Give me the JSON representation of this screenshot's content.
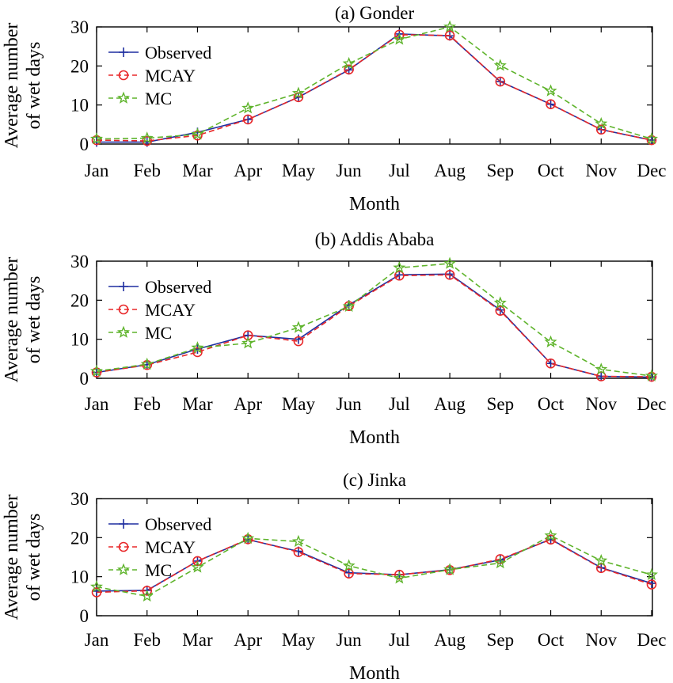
{
  "colors": {
    "observed": "#1f2fa0",
    "mcay": "#e8282a",
    "mc": "#5fb42c"
  },
  "chart_data": [
    {
      "type": "line",
      "title": "(a) Gonder",
      "xlabel": "Month",
      "ylabel": "Average number of wet days",
      "ylabel_lines": [
        "Average number",
        "of wet days"
      ],
      "categories": [
        "Jan",
        "Feb",
        "Mar",
        "Apr",
        "May",
        "Jun",
        "Jul",
        "Aug",
        "Sep",
        "Oct",
        "Nov",
        "Dec"
      ],
      "ylim": [
        0,
        30
      ],
      "yticks": [
        0,
        10,
        20,
        30
      ],
      "legend": "top-left",
      "grid": false,
      "series": [
        {
          "name": "Observed",
          "marker": "plus",
          "values": [
            0.5,
            0.5,
            3.0,
            6.3,
            12.0,
            19.0,
            28.2,
            27.7,
            16.0,
            10.2,
            3.7,
            1.0
          ]
        },
        {
          "name": "MCAY",
          "marker": "circle",
          "values": [
            1.0,
            0.8,
            2.2,
            6.3,
            12.0,
            19.1,
            28.0,
            27.8,
            16.0,
            10.2,
            3.7,
            1.0
          ]
        },
        {
          "name": "MC",
          "marker": "star",
          "values": [
            1.3,
            1.5,
            2.5,
            9.2,
            13.0,
            20.6,
            26.8,
            30.0,
            20.1,
            13.6,
            5.2,
            1.3
          ]
        }
      ]
    },
    {
      "type": "line",
      "title": "(b) Addis Ababa",
      "xlabel": "Month",
      "ylabel": "Average number of wet days",
      "ylabel_lines": [
        "Average number",
        "of wet days"
      ],
      "categories": [
        "Jan",
        "Feb",
        "Mar",
        "Apr",
        "May",
        "Jun",
        "Jul",
        "Aug",
        "Sep",
        "Oct",
        "Nov",
        "Dec"
      ],
      "ylim": [
        0,
        30
      ],
      "yticks": [
        0,
        10,
        20,
        30
      ],
      "legend": "top-left",
      "grid": false,
      "series": [
        {
          "name": "Observed",
          "marker": "plus",
          "values": [
            1.5,
            3.5,
            7.5,
            11.0,
            10.0,
            18.8,
            26.5,
            26.7,
            17.5,
            3.8,
            0.5,
            0.3
          ]
        },
        {
          "name": "MCAY",
          "marker": "circle",
          "values": [
            1.5,
            3.4,
            6.7,
            11.0,
            9.5,
            18.5,
            26.3,
            26.5,
            17.3,
            3.8,
            0.5,
            0.4
          ]
        },
        {
          "name": "MC",
          "marker": "star",
          "values": [
            1.8,
            3.6,
            7.8,
            9.0,
            13.0,
            18.4,
            28.3,
            29.4,
            19.3,
            9.3,
            2.3,
            0.6
          ]
        }
      ]
    },
    {
      "type": "line",
      "title": "(c) Jinka",
      "xlabel": "Month",
      "ylabel": "Average number of wet days",
      "ylabel_lines": [
        "Average number",
        "of wet days"
      ],
      "categories": [
        "Jan",
        "Feb",
        "Mar",
        "Apr",
        "May",
        "Jun",
        "Jul",
        "Aug",
        "Sep",
        "Oct",
        "Nov",
        "Dec"
      ],
      "ylim": [
        0,
        30
      ],
      "yticks": [
        0,
        10,
        20,
        30
      ],
      "legend": "top-left",
      "grid": false,
      "series": [
        {
          "name": "Observed",
          "marker": "plus",
          "values": [
            6.3,
            6.5,
            14.0,
            19.5,
            16.5,
            11.0,
            10.5,
            11.8,
            14.3,
            19.6,
            12.3,
            8.3
          ]
        },
        {
          "name": "MCAY",
          "marker": "circle",
          "values": [
            6.0,
            6.4,
            14.0,
            19.6,
            16.3,
            10.8,
            10.5,
            11.7,
            14.5,
            19.5,
            12.2,
            8.0
          ]
        },
        {
          "name": "MC",
          "marker": "star",
          "values": [
            7.4,
            5.0,
            12.4,
            19.8,
            19.0,
            12.8,
            9.6,
            11.8,
            13.5,
            20.5,
            14.1,
            10.5
          ]
        }
      ]
    }
  ]
}
